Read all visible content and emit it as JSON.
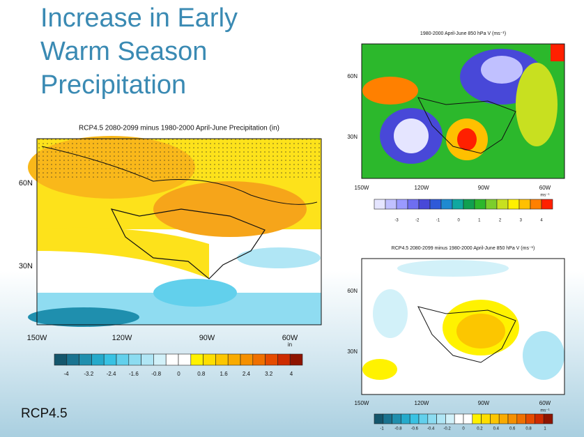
{
  "title_lines": [
    "Increase in Early",
    "Warm Season",
    "Precipitation"
  ],
  "maps": [
    {
      "title": "RCP4.5 2080-2099 minus 1980-2000 April-June Precipitation (in)",
      "lat_labels": [
        "60N",
        "30N"
      ],
      "lon_labels": [
        "150W",
        "120W",
        "90W",
        "60W"
      ],
      "units": "in",
      "colorbar_labels": [
        -4,
        -3.2,
        -2.4,
        -1.6,
        -0.8,
        0,
        0.8,
        1.6,
        2.4,
        3.2,
        4
      ],
      "colors": [
        "#14566c",
        "#1a7390",
        "#1f8fae",
        "#25aacb",
        "#38c2e3",
        "#62d0ec",
        "#8cdcf1",
        "#b0e6f5",
        "#d2f1f9",
        "#ffffff",
        "#ffffff",
        "#fff200",
        "#fede00",
        "#fcc600",
        "#f9ab00",
        "#f59000",
        "#ef7000",
        "#e54b00",
        "#cd2b00",
        "#8e1400"
      ]
    },
    {
      "title": "1980-2000 April-June 850 hPa V (ms⁻¹)",
      "lat_labels": [
        "60N",
        "30N"
      ],
      "lon_labels": [
        "150W",
        "120W",
        "90W",
        "60W"
      ],
      "units": "ms⁻¹",
      "colorbar_labels": [
        -3,
        -2,
        -1,
        0,
        1,
        2,
        3,
        4
      ],
      "colors": [
        "#e5e5ff",
        "#c0c0ff",
        "#9a9aff",
        "#6e6ef0",
        "#4848d8",
        "#2e5ad8",
        "#1e8ad0",
        "#10a8a0",
        "#10a050",
        "#2cb82c",
        "#7cce2c",
        "#c8e020",
        "#fff000",
        "#ffc000",
        "#ff8000",
        "#ff2000"
      ]
    },
    {
      "title": "RCP4.5 2080-2099 minus 1980-2000 April-June 850 hPa V (ms⁻¹)",
      "lat_labels": [
        "60N",
        "30N"
      ],
      "lon_labels": [
        "150W",
        "120W",
        "90W",
        "60W"
      ],
      "units": "ms⁻¹",
      "colorbar_labels": [
        -1,
        -0.8,
        -0.6,
        -0.4,
        -0.2,
        0,
        0.2,
        0.4,
        0.6,
        0.8,
        1
      ],
      "colors": [
        "#14566c",
        "#1a7390",
        "#1f8fae",
        "#25aacb",
        "#38c2e3",
        "#62d0ec",
        "#8cdcf1",
        "#b0e6f5",
        "#d2f1f9",
        "#ffffff",
        "#ffffff",
        "#fff200",
        "#fede00",
        "#fcc600",
        "#f9ab00",
        "#f59000",
        "#ef7000",
        "#e54b00",
        "#cd2b00",
        "#8e1400"
      ]
    }
  ],
  "footer": "RCP4.5"
}
